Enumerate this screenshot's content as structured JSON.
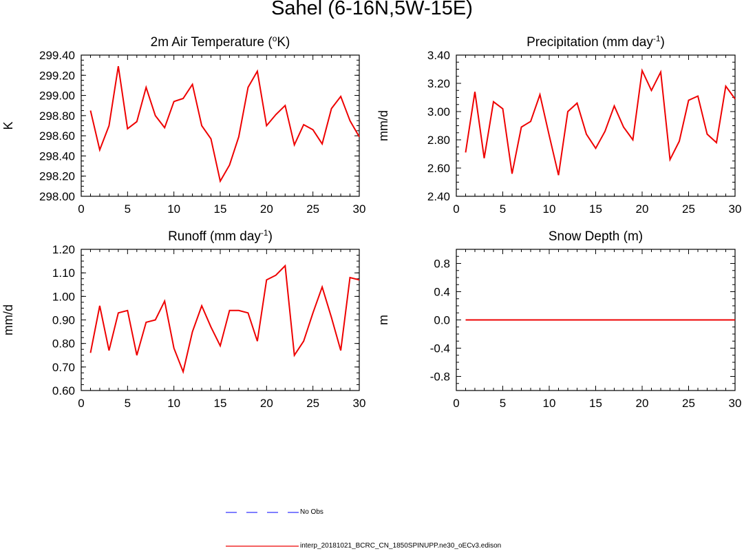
{
  "title": "Sahel (6-16N,5W-15E)",
  "colors": {
    "model": "#ee0000",
    "obs": "#3333ff",
    "axis": "#000000"
  },
  "legend": {
    "obs_label": "No Obs",
    "model_label": "interp_20181021_BCRC_CN_1850SPINUPP.ne30_oECv3.edison"
  },
  "chart_data": [
    {
      "type": "line",
      "title": "2m Air Temperature",
      "title_unit": "K",
      "title_sup": "o",
      "ylabel": "K",
      "xlabel": "",
      "xlim": [
        0,
        30
      ],
      "ylim": [
        298.0,
        299.4
      ],
      "xticks": [
        0,
        5,
        10,
        15,
        20,
        25,
        30
      ],
      "yticks": [
        298.0,
        298.2,
        298.4,
        298.6,
        298.8,
        299.0,
        299.2,
        299.4
      ],
      "ytick_labels": [
        "298.00",
        "298.20",
        "298.40",
        "298.60",
        "298.80",
        "299.00",
        "299.20",
        "299.40"
      ],
      "series": [
        {
          "name": "interp_20181021_BCRC_CN_1850SPINUPP.ne30_oECv3.edison",
          "x": [
            1,
            2,
            3,
            4,
            5,
            6,
            7,
            8,
            9,
            10,
            11,
            12,
            13,
            14,
            15,
            16,
            17,
            18,
            19,
            20,
            21,
            22,
            23,
            24,
            25,
            26,
            27,
            28,
            29,
            30
          ],
          "values": [
            298.85,
            298.46,
            298.7,
            299.29,
            298.67,
            298.74,
            299.08,
            298.8,
            298.68,
            298.94,
            298.97,
            299.11,
            298.7,
            298.57,
            298.15,
            298.31,
            298.59,
            299.08,
            299.24,
            298.7,
            298.81,
            298.9,
            298.51,
            298.71,
            298.66,
            298.52,
            298.87,
            298.99,
            298.75,
            298.59
          ]
        }
      ]
    },
    {
      "type": "line",
      "title": "Precipitation",
      "title_unit": "mm day",
      "title_sup": "-1",
      "ylabel": "mm/d",
      "xlabel": "",
      "xlim": [
        0,
        30
      ],
      "ylim": [
        2.4,
        3.4
      ],
      "xticks": [
        0,
        5,
        10,
        15,
        20,
        25,
        30
      ],
      "yticks": [
        2.4,
        2.6,
        2.8,
        3.0,
        3.2,
        3.4
      ],
      "ytick_labels": [
        "2.40",
        "2.60",
        "2.80",
        "3.00",
        "3.20",
        "3.40"
      ],
      "series": [
        {
          "name": "interp_20181021_BCRC_CN_1850SPINUPP.ne30_oECv3.edison",
          "x": [
            1,
            2,
            3,
            4,
            5,
            6,
            7,
            8,
            9,
            10,
            11,
            12,
            13,
            14,
            15,
            16,
            17,
            18,
            19,
            20,
            21,
            22,
            23,
            24,
            25,
            26,
            27,
            28,
            29,
            30
          ],
          "values": [
            2.71,
            3.14,
            2.67,
            3.07,
            3.02,
            2.56,
            2.89,
            2.93,
            3.12,
            2.83,
            2.55,
            3.0,
            3.06,
            2.84,
            2.74,
            2.86,
            3.04,
            2.89,
            2.8,
            3.29,
            3.15,
            3.28,
            2.66,
            2.79,
            3.08,
            3.11,
            2.84,
            2.78,
            3.18,
            3.09
          ]
        }
      ]
    },
    {
      "type": "line",
      "title": "Runoff",
      "title_unit": "mm day",
      "title_sup": "-1",
      "ylabel": "mm/d",
      "xlabel": "",
      "xlim": [
        0,
        30
      ],
      "ylim": [
        0.6,
        1.2
      ],
      "xticks": [
        0,
        5,
        10,
        15,
        20,
        25,
        30
      ],
      "yticks": [
        0.6,
        0.7,
        0.8,
        0.9,
        1.0,
        1.1,
        1.2
      ],
      "ytick_labels": [
        "0.60",
        "0.70",
        "0.80",
        "0.90",
        "1.00",
        "1.10",
        "1.20"
      ],
      "series": [
        {
          "name": "interp_20181021_BCRC_CN_1850SPINUPP.ne30_oECv3.edison",
          "x": [
            1,
            2,
            3,
            4,
            5,
            6,
            7,
            8,
            9,
            10,
            11,
            12,
            13,
            14,
            15,
            16,
            17,
            18,
            19,
            20,
            21,
            22,
            23,
            24,
            25,
            26,
            27,
            28,
            29,
            30
          ],
          "values": [
            0.76,
            0.96,
            0.77,
            0.93,
            0.94,
            0.75,
            0.89,
            0.9,
            0.98,
            0.78,
            0.68,
            0.85,
            0.96,
            0.87,
            0.79,
            0.94,
            0.94,
            0.93,
            0.81,
            1.07,
            1.09,
            1.13,
            0.75,
            0.81,
            0.93,
            1.04,
            0.91,
            0.77,
            1.08,
            1.07
          ]
        }
      ]
    },
    {
      "type": "line",
      "title": "Snow Depth (m)",
      "title_unit": "",
      "title_sup": "",
      "ylabel": "m",
      "xlabel": "",
      "xlim": [
        0,
        30
      ],
      "ylim": [
        -1.0,
        1.0
      ],
      "xticks": [
        0,
        5,
        10,
        15,
        20,
        25,
        30
      ],
      "yticks": [
        -0.8,
        -0.4,
        0.0,
        0.4,
        0.8
      ],
      "ytick_labels": [
        "-0.8",
        "-0.4",
        "0.0",
        "0.4",
        "0.8"
      ],
      "series": [
        {
          "name": "interp_20181021_BCRC_CN_1850SPINUPP.ne30_oECv3.edison",
          "x": [
            1,
            2,
            3,
            4,
            5,
            6,
            7,
            8,
            9,
            10,
            11,
            12,
            13,
            14,
            15,
            16,
            17,
            18,
            19,
            20,
            21,
            22,
            23,
            24,
            25,
            26,
            27,
            28,
            29,
            30
          ],
          "values": [
            0,
            0,
            0,
            0,
            0,
            0,
            0,
            0,
            0,
            0,
            0,
            0,
            0,
            0,
            0,
            0,
            0,
            0,
            0,
            0,
            0,
            0,
            0,
            0,
            0,
            0,
            0,
            0,
            0,
            0
          ]
        }
      ]
    }
  ]
}
